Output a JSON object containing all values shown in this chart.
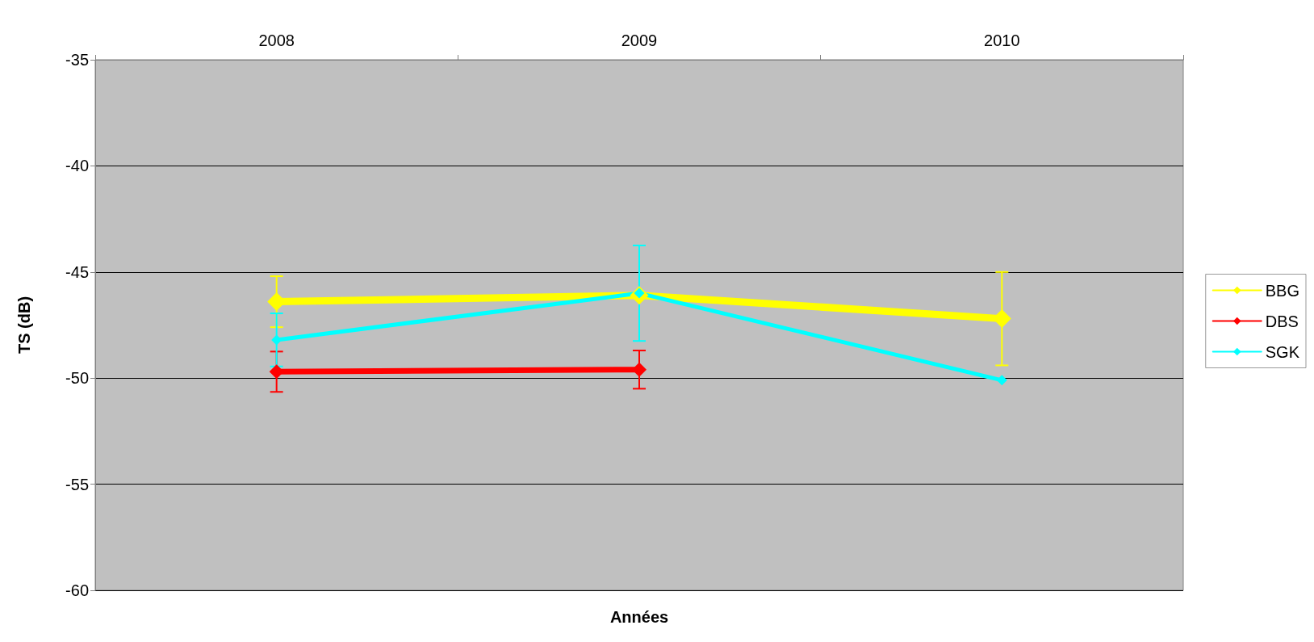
{
  "chart_data": {
    "type": "line",
    "xlabel": "Années",
    "ylabel": "TS (dB)",
    "categories": [
      "2008",
      "2009",
      "2010"
    ],
    "series": [
      {
        "name": "BBG",
        "color": "#ffff00",
        "values": [
          -46.4,
          -46.1,
          -47.2
        ],
        "errors": [
          1.2,
          null,
          2.2
        ]
      },
      {
        "name": "DBS",
        "color": "#ff0000",
        "values": [
          -49.7,
          -49.6,
          null
        ],
        "errors": [
          0.95,
          0.9,
          null
        ]
      },
      {
        "name": "SGK",
        "color": "#00ffff",
        "values": [
          -48.2,
          -46.0,
          -50.1
        ],
        "errors": [
          1.25,
          2.25,
          null
        ]
      }
    ],
    "ylim": [
      -60,
      -35
    ],
    "yticks": [
      -60,
      -55,
      -50,
      -45,
      -40,
      -35
    ],
    "grid": "y",
    "legend": "right",
    "marker": "diamond",
    "line_style": "solid"
  }
}
